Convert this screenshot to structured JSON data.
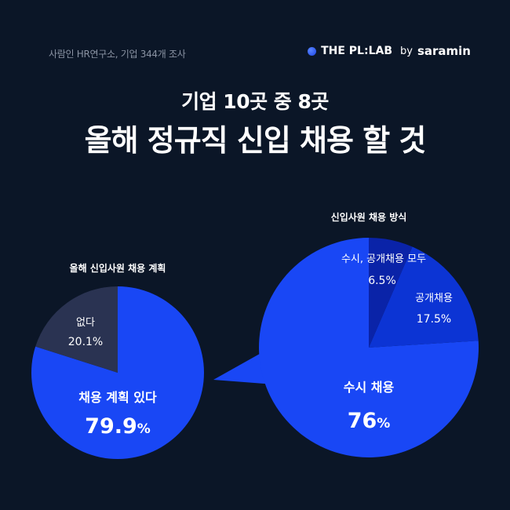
{
  "header": {
    "source": "사람인 HR연구소, 기업 344개 조사",
    "brand": "THE PL:LAB",
    "by": "by",
    "partner": "saramin"
  },
  "subtitle": "기업 10곳 중 8곳",
  "title": "올해 정규직 신입 채용 할 것",
  "colors": {
    "background": "#0b1627",
    "brand_blue": "#1947f5",
    "dark_slate": "#2a3352",
    "navy_slice": "#0a23a8",
    "mid_blue": "#0c34d4"
  },
  "chart_data": [
    {
      "type": "pie",
      "title": "올해 신입사원 채용 계획",
      "slices": [
        {
          "label": "채용 계획 있다",
          "value": 79.9,
          "display": "79.9",
          "unit": "%"
        },
        {
          "label": "없다",
          "value": 20.1,
          "display": "20.1%"
        }
      ]
    },
    {
      "type": "pie",
      "title": "신입사원 채용 방식",
      "slices": [
        {
          "label": "수시 채용",
          "value": 76,
          "display": "76",
          "unit": "%"
        },
        {
          "label": "수시, 공개채용 모두",
          "value": 6.5,
          "display": "6.5%"
        },
        {
          "label": "공개채용",
          "value": 17.5,
          "display": "17.5%"
        }
      ]
    }
  ]
}
